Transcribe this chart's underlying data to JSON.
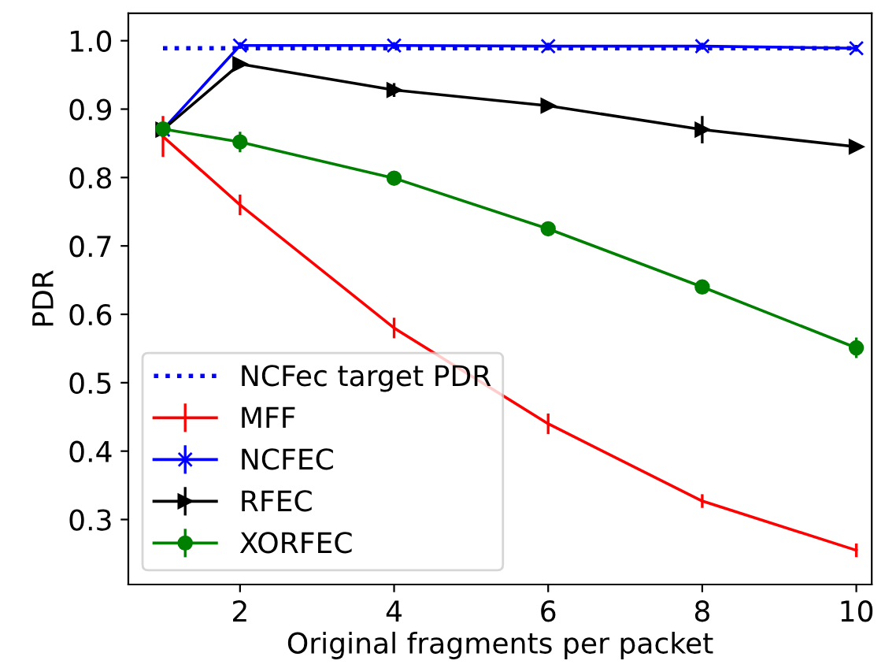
{
  "chart_data": {
    "type": "line",
    "xlabel": "Original fragments per packet",
    "ylabel": "PDR",
    "xlim": [
      0.55,
      10.2
    ],
    "ylim": [
      0.205,
      1.04
    ],
    "xticks": [
      2,
      4,
      6,
      8,
      10
    ],
    "yticks": [
      0.3,
      0.4,
      0.5,
      0.6,
      0.7,
      0.8,
      0.9,
      {
        "value": 1.0,
        "label": "1.0"
      }
    ],
    "grid": false,
    "legend": "bottom left",
    "series": [
      {
        "name": "NCFec target PDR",
        "color": "#0000ff",
        "x": [
          1,
          10
        ],
        "values": [
          0.989,
          0.989
        ],
        "line_style": "dotted"
      },
      {
        "name": "MFF",
        "color": "#ff0000",
        "x": [
          1,
          2,
          4,
          6,
          8,
          10
        ],
        "values": [
          0.86,
          0.76,
          0.58,
          0.44,
          0.327,
          0.255
        ],
        "errors": [
          0.03,
          0.015,
          0.015,
          0.015,
          0.01,
          0.01
        ],
        "marker": "none"
      },
      {
        "name": "NCFEC",
        "color": "#0000ff",
        "x": [
          1,
          2,
          4,
          6,
          8,
          10
        ],
        "values": [
          0.87,
          0.993,
          0.993,
          0.992,
          0.992,
          0.989
        ],
        "errors": [
          null,
          0.005,
          0.005,
          0.005,
          0.005,
          0.005
        ],
        "marker": "cross"
      },
      {
        "name": "RFEC",
        "color": "#000000",
        "x": [
          1,
          2,
          4,
          6,
          8,
          10
        ],
        "values": [
          0.87,
          0.966,
          0.928,
          0.905,
          0.87,
          0.845
        ],
        "errors": [
          null,
          0.005,
          0.01,
          0.005,
          0.02,
          0.005
        ],
        "marker": "triangle"
      },
      {
        "name": "XORFEC",
        "color": "#008000",
        "x": [
          1,
          2,
          4,
          6,
          8,
          10
        ],
        "values": [
          0.871,
          0.852,
          0.799,
          0.725,
          0.64,
          0.551
        ],
        "errors": [
          null,
          0.015,
          0.01,
          0.01,
          0.01,
          0.015
        ],
        "marker": "circle"
      }
    ]
  }
}
